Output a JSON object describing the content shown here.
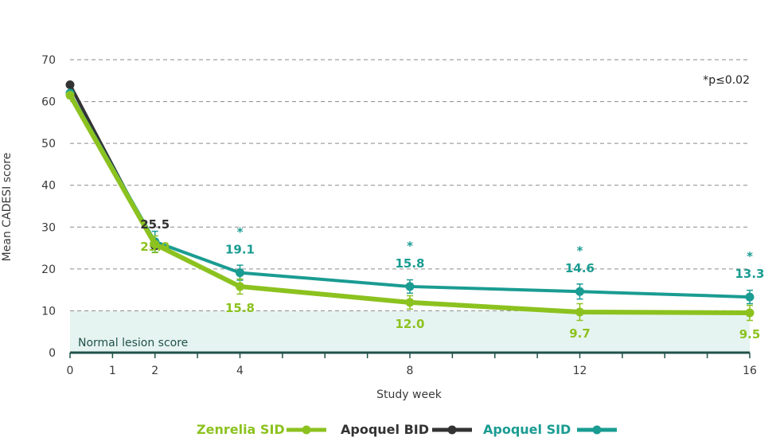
{
  "chart_data": {
    "type": "line",
    "title": "",
    "xlabel": "Study week",
    "ylabel": "Mean CADESI score",
    "xlim": [
      0,
      16
    ],
    "ylim": [
      0,
      70
    ],
    "x_ticks": [
      0,
      1,
      2,
      4,
      8,
      12,
      16
    ],
    "y_ticks": [
      0,
      10,
      20,
      30,
      40,
      50,
      60,
      70
    ],
    "grid": "horizontal-dashed",
    "band": {
      "label": "Normal lesion score",
      "from": 0,
      "to": 10,
      "color": "#e6f4f1"
    },
    "significance_note": "*p≤0.02",
    "colors": {
      "zenrelia": "#8cc21f",
      "apoquel_bid": "#333333",
      "apoquel_sid": "#1a9c92",
      "axis": "#20524a",
      "grid": "#8a8a8a"
    },
    "series": [
      {
        "name": "Apoquel BID",
        "color": "#333333",
        "x": [
          0,
          2
        ],
        "y": [
          64,
          25.5
        ],
        "labels": [
          null,
          "25.5"
        ]
      },
      {
        "name": "Apoquel SID",
        "color": "#1a9c92",
        "x": [
          0,
          2,
          4,
          8,
          12,
          16
        ],
        "y": [
          62,
          26.5,
          19.1,
          15.8,
          14.6,
          13.3
        ],
        "errors": [
          0,
          2.5,
          1.8,
          1.6,
          1.8,
          1.6
        ],
        "labels": [
          null,
          null,
          "19.1",
          "15.8",
          "14.6",
          "13.3"
        ],
        "significant": [
          false,
          false,
          true,
          true,
          true,
          true
        ]
      },
      {
        "name": "Zenrelia SID",
        "color": "#8cc21f",
        "x": [
          0,
          2,
          4,
          8,
          12,
          16
        ],
        "y": [
          61.5,
          25.9,
          15.8,
          12.0,
          9.7,
          9.5
        ],
        "errors": [
          0,
          2.0,
          1.8,
          1.6,
          2.0,
          1.8
        ],
        "labels": [
          null,
          "25.9",
          "15.8",
          "12.0",
          "9.7",
          "9.5"
        ]
      }
    ]
  },
  "legend": {
    "zenrelia_sid": "Zenrelia SID",
    "apoquel_bid": "Apoquel BID",
    "apoquel_sid": "Apoquel SID"
  }
}
